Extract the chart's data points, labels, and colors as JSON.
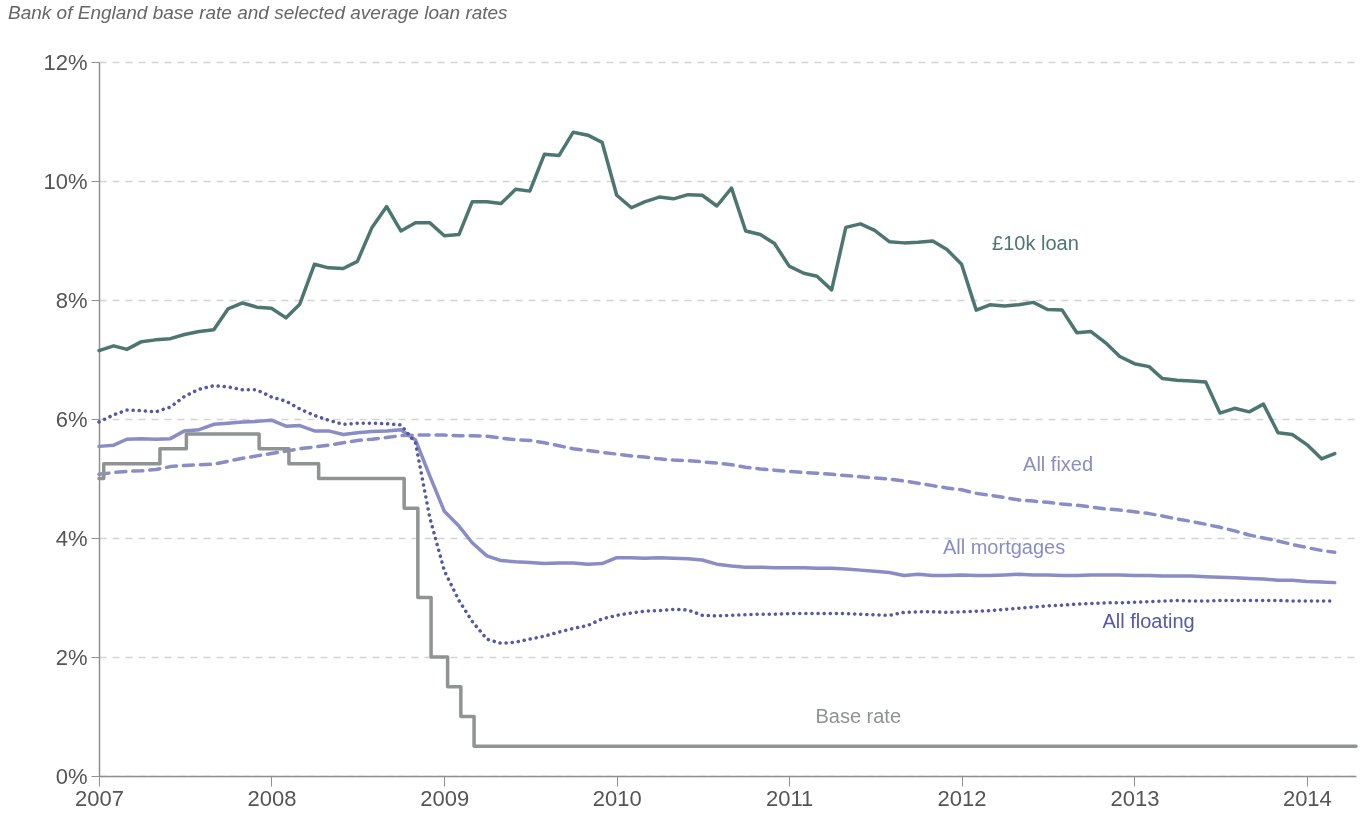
{
  "chart_data": {
    "type": "line",
    "title": "Bank of England base rate and selected average loan rates",
    "x": [
      "2007-01",
      "2007-02",
      "2007-03",
      "2007-04",
      "2007-05",
      "2007-06",
      "2007-07",
      "2007-08",
      "2007-09",
      "2007-10",
      "2007-11",
      "2007-12",
      "2008-01",
      "2008-02",
      "2008-03",
      "2008-04",
      "2008-05",
      "2008-06",
      "2008-07",
      "2008-08",
      "2008-09",
      "2008-10",
      "2008-11",
      "2008-12",
      "2009-01",
      "2009-02",
      "2009-03",
      "2009-04",
      "2009-05",
      "2009-06",
      "2009-07",
      "2009-08",
      "2009-09",
      "2009-10",
      "2009-11",
      "2009-12",
      "2010-01",
      "2010-02",
      "2010-03",
      "2010-04",
      "2010-05",
      "2010-06",
      "2010-07",
      "2010-08",
      "2010-09",
      "2010-10",
      "2010-11",
      "2010-12",
      "2011-01",
      "2011-02",
      "2011-03",
      "2011-04",
      "2011-05",
      "2011-06",
      "2011-07",
      "2011-08",
      "2011-09",
      "2011-10",
      "2011-11",
      "2011-12",
      "2012-01",
      "2012-02",
      "2012-03",
      "2012-04",
      "2012-05",
      "2012-06",
      "2012-07",
      "2012-08",
      "2012-09",
      "2012-10",
      "2012-11",
      "2012-12",
      "2013-01",
      "2013-02",
      "2013-03",
      "2013-04",
      "2013-05",
      "2013-06",
      "2013-07",
      "2013-08",
      "2013-09",
      "2013-10",
      "2013-11",
      "2013-12",
      "2014-01",
      "2014-02",
      "2014-03"
    ],
    "series": [
      {
        "name": "£10k loan",
        "color": "#4d7670",
        "line_style": "solid",
        "values": [
          7.15,
          7.23,
          7.17,
          7.3,
          7.33,
          7.35,
          7.42,
          7.47,
          7.5,
          7.85,
          7.95,
          7.88,
          7.86,
          7.7,
          7.93,
          8.6,
          8.54,
          8.53,
          8.65,
          9.22,
          9.57,
          9.16,
          9.3,
          9.3,
          9.08,
          9.1,
          9.65,
          9.65,
          9.62,
          9.86,
          9.83,
          10.45,
          10.43,
          10.82,
          10.77,
          10.65,
          9.76,
          9.55,
          9.65,
          9.73,
          9.7,
          9.77,
          9.76,
          9.58,
          9.88,
          9.16,
          9.1,
          8.95,
          8.57,
          8.45,
          8.4,
          8.17,
          9.22,
          9.28,
          9.17,
          8.98,
          8.96,
          8.97,
          8.99,
          8.85,
          8.6,
          7.83,
          7.92,
          7.9,
          7.92,
          7.96,
          7.84,
          7.83,
          7.45,
          7.47,
          7.28,
          7.05,
          6.93,
          6.88,
          6.68,
          6.65,
          6.64,
          6.62,
          6.1,
          6.18,
          6.12,
          6.25,
          5.77,
          5.74,
          5.57,
          5.33,
          5.42
        ]
      },
      {
        "name": "All fixed",
        "color": "#8a8cc6",
        "line_style": "dashed",
        "values": [
          5.07,
          5.1,
          5.12,
          5.13,
          5.15,
          5.2,
          5.22,
          5.23,
          5.24,
          5.29,
          5.34,
          5.38,
          5.42,
          5.46,
          5.5,
          5.53,
          5.56,
          5.6,
          5.64,
          5.66,
          5.69,
          5.72,
          5.73,
          5.73,
          5.73,
          5.72,
          5.72,
          5.71,
          5.68,
          5.65,
          5.64,
          5.6,
          5.55,
          5.5,
          5.47,
          5.44,
          5.41,
          5.38,
          5.36,
          5.33,
          5.31,
          5.3,
          5.28,
          5.26,
          5.23,
          5.19,
          5.16,
          5.14,
          5.12,
          5.1,
          5.09,
          5.07,
          5.05,
          5.03,
          5.01,
          4.99,
          4.96,
          4.92,
          4.88,
          4.84,
          4.81,
          4.75,
          4.72,
          4.68,
          4.64,
          4.62,
          4.6,
          4.57,
          4.55,
          4.52,
          4.49,
          4.47,
          4.44,
          4.41,
          4.37,
          4.32,
          4.28,
          4.23,
          4.18,
          4.12,
          4.05,
          4.0,
          3.95,
          3.89,
          3.84,
          3.79,
          3.76
        ]
      },
      {
        "name": "All mortgages",
        "color": "#8a8cc6",
        "line_style": "solid",
        "values": [
          5.54,
          5.56,
          5.66,
          5.67,
          5.66,
          5.67,
          5.8,
          5.82,
          5.91,
          5.93,
          5.95,
          5.96,
          5.98,
          5.88,
          5.89,
          5.8,
          5.8,
          5.74,
          5.77,
          5.79,
          5.8,
          5.82,
          5.65,
          5.05,
          4.45,
          4.2,
          3.92,
          3.7,
          3.62,
          3.6,
          3.59,
          3.57,
          3.58,
          3.58,
          3.56,
          3.57,
          3.67,
          3.67,
          3.66,
          3.67,
          3.66,
          3.65,
          3.63,
          3.56,
          3.53,
          3.51,
          3.51,
          3.5,
          3.5,
          3.5,
          3.49,
          3.49,
          3.48,
          3.46,
          3.44,
          3.42,
          3.37,
          3.39,
          3.37,
          3.37,
          3.38,
          3.37,
          3.37,
          3.38,
          3.39,
          3.38,
          3.38,
          3.37,
          3.37,
          3.38,
          3.38,
          3.38,
          3.37,
          3.37,
          3.36,
          3.36,
          3.36,
          3.35,
          3.34,
          3.33,
          3.32,
          3.31,
          3.29,
          3.29,
          3.27,
          3.26,
          3.25
        ]
      },
      {
        "name": "All floating",
        "color": "#5558a6",
        "line_style": "dotted",
        "values": [
          5.95,
          6.07,
          6.15,
          6.14,
          6.12,
          6.2,
          6.38,
          6.5,
          6.56,
          6.54,
          6.49,
          6.49,
          6.37,
          6.3,
          6.17,
          6.06,
          5.98,
          5.91,
          5.93,
          5.93,
          5.92,
          5.9,
          5.6,
          4.35,
          3.45,
          2.95,
          2.6,
          2.3,
          2.23,
          2.25,
          2.3,
          2.35,
          2.42,
          2.48,
          2.53,
          2.64,
          2.7,
          2.74,
          2.77,
          2.78,
          2.8,
          2.79,
          2.7,
          2.69,
          2.7,
          2.71,
          2.72,
          2.72,
          2.73,
          2.73,
          2.73,
          2.73,
          2.73,
          2.72,
          2.71,
          2.7,
          2.75,
          2.76,
          2.76,
          2.75,
          2.76,
          2.77,
          2.78,
          2.8,
          2.82,
          2.84,
          2.86,
          2.87,
          2.89,
          2.9,
          2.91,
          2.91,
          2.92,
          2.93,
          2.94,
          2.95,
          2.94,
          2.94,
          2.95,
          2.95,
          2.95,
          2.95,
          2.95,
          2.94,
          2.94,
          2.94,
          2.94
        ]
      },
      {
        "name": "Base rate",
        "type": "step",
        "color": "#8f9392",
        "line_style": "solid",
        "x": [
          "2007-01-01",
          "2007-01-11",
          "2007-05-10",
          "2007-07-05",
          "2007-12-06",
          "2008-02-07",
          "2008-04-10",
          "2008-10-08",
          "2008-11-06",
          "2008-12-04",
          "2009-01-08",
          "2009-02-05",
          "2009-03-05",
          "2014-04-15"
        ],
        "values": [
          5,
          5.25,
          5.5,
          5.75,
          5.5,
          5.25,
          5,
          4.5,
          3,
          2,
          1.5,
          1,
          0.5,
          0.5
        ]
      }
    ],
    "xlim": [
      "2007-01-01",
      "2014-04-15"
    ],
    "xticks": [
      "2007",
      "2008",
      "2009",
      "2010",
      "2011",
      "2012",
      "2013",
      "2014"
    ],
    "ylim": [
      0,
      12
    ],
    "yticks": [
      {
        "value": 0,
        "label": "0%"
      },
      {
        "value": 2,
        "label": "2%"
      },
      {
        "value": 4,
        "label": "4%"
      },
      {
        "value": 6,
        "label": "6%"
      },
      {
        "value": 8,
        "label": "8%"
      },
      {
        "value": 10,
        "label": "10%"
      },
      {
        "value": 12,
        "label": "12%"
      }
    ],
    "grid": "y"
  }
}
